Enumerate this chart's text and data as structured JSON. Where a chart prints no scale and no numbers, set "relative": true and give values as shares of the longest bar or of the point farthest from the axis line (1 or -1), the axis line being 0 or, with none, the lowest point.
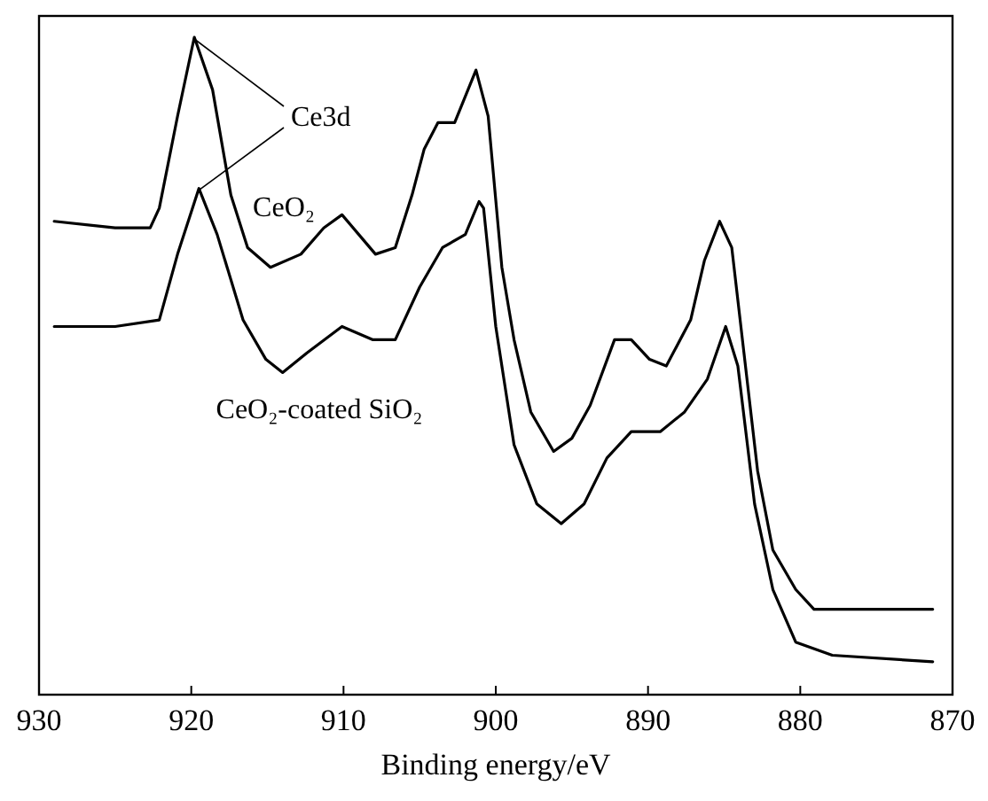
{
  "chart_data": {
    "type": "line",
    "xlabel": "Binding energy/eV",
    "relative": true,
    "xlim": [
      930,
      870
    ],
    "xticks": [
      930,
      920,
      910,
      900,
      890,
      880,
      870
    ],
    "tick_labels": "x",
    "line_style": "solid",
    "annotations": [
      "Ce3d"
    ],
    "series": [
      {
        "name": "CeO₂",
        "color": "#000000",
        "x": [
          929,
          925,
          922.7,
          922.1,
          920.9,
          919.8,
          918.6,
          917.4,
          916.3,
          914.8,
          912.8,
          911.3,
          910.1,
          909,
          907.9,
          906.6,
          905.5,
          904.7,
          903.8,
          902.7,
          901.3,
          900.5,
          899.6,
          898.8,
          897.7,
          896.2,
          895,
          893.8,
          892.2,
          891.1,
          889.9,
          888.8,
          887.2,
          886.3,
          885.3,
          884.5,
          883.7,
          882.8,
          881.8,
          880.3,
          879.1,
          871.3
        ],
        "values": [
          0.72,
          0.71,
          0.71,
          0.74,
          0.88,
          1,
          0.92,
          0.76,
          0.68,
          0.65,
          0.67,
          0.71,
          0.73,
          0.7,
          0.67,
          0.68,
          0.76,
          0.83,
          0.87,
          0.87,
          0.95,
          0.88,
          0.65,
          0.54,
          0.43,
          0.37,
          0.39,
          0.44,
          0.54,
          0.54,
          0.51,
          0.5,
          0.57,
          0.66,
          0.72,
          0.68,
          0.52,
          0.34,
          0.22,
          0.16,
          0.13,
          0.13
        ]
      },
      {
        "name": "CeO₂-coated SiO₂",
        "color": "#000000",
        "x": [
          929,
          925,
          922.1,
          920.9,
          919.5,
          918.3,
          916.6,
          915.1,
          914,
          912.4,
          910.1,
          908.1,
          906.6,
          905,
          903.5,
          902,
          901.1,
          900.8,
          900,
          898.8,
          897.3,
          895.7,
          894.2,
          892.7,
          891.1,
          889.2,
          887.6,
          886.1,
          884.9,
          884.1,
          883,
          881.8,
          880.3,
          877.9,
          871.3
        ],
        "values": [
          0.56,
          0.56,
          0.57,
          0.67,
          0.77,
          0.7,
          0.57,
          0.51,
          0.49,
          0.52,
          0.56,
          0.54,
          0.54,
          0.62,
          0.68,
          0.7,
          0.75,
          0.74,
          0.56,
          0.38,
          0.29,
          0.26,
          0.29,
          0.36,
          0.4,
          0.4,
          0.43,
          0.48,
          0.56,
          0.5,
          0.29,
          0.16,
          0.08,
          0.06,
          0.05
        ]
      }
    ]
  }
}
